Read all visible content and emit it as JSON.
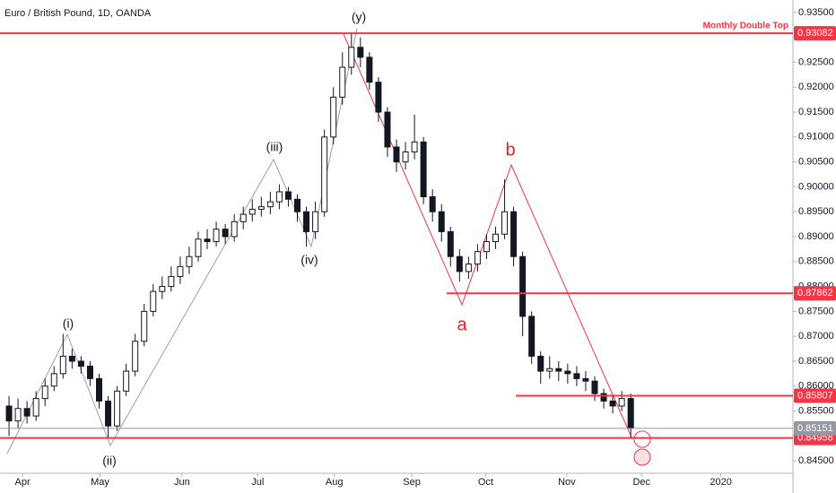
{
  "chart_data": {
    "type": "candlestick",
    "title": "Euro / British Pound, 1D, OANDA",
    "open": [
      0.856,
      0.853,
      0.8555,
      0.854,
      0.8575,
      0.86,
      0.8625,
      0.866,
      0.865,
      0.864,
      0.8615,
      0.857,
      0.852,
      0.859,
      0.863,
      0.869,
      0.875,
      0.879,
      0.88,
      0.882,
      0.884,
      0.886,
      0.8895,
      0.889,
      0.8915,
      0.89,
      0.893,
      0.8945,
      0.8955,
      0.896,
      0.897,
      0.899,
      0.8975,
      0.895,
      0.891,
      0.895,
      0.91,
      0.918,
      0.924,
      0.928,
      0.926,
      0.921,
      0.915,
      0.908,
      0.905,
      0.907,
      0.909,
      0.898,
      0.895,
      0.891,
      0.886,
      0.883,
      0.8845,
      0.887,
      0.889,
      0.8905,
      0.895,
      0.886,
      0.874,
      0.866,
      0.863,
      0.8635,
      0.863,
      0.8625,
      0.8615,
      0.861,
      0.8585,
      0.857,
      0.856,
      0.8575
    ],
    "high": [
      0.858,
      0.8575,
      0.857,
      0.859,
      0.8615,
      0.864,
      0.8705,
      0.8675,
      0.866,
      0.865,
      0.8625,
      0.858,
      0.86,
      0.8645,
      0.8705,
      0.8765,
      0.8805,
      0.882,
      0.884,
      0.886,
      0.888,
      0.891,
      0.8915,
      0.893,
      0.8925,
      0.8945,
      0.896,
      0.8975,
      0.898,
      0.899,
      0.9005,
      0.9,
      0.8985,
      0.896,
      0.897,
      0.9115,
      0.92,
      0.927,
      0.931,
      0.93,
      0.927,
      0.922,
      0.916,
      0.9095,
      0.909,
      0.9145,
      0.91,
      0.8995,
      0.8965,
      0.892,
      0.8875,
      0.886,
      0.8885,
      0.8905,
      0.892,
      0.9015,
      0.896,
      0.887,
      0.875,
      0.867,
      0.866,
      0.865,
      0.8645,
      0.864,
      0.863,
      0.862,
      0.8595,
      0.858,
      0.859,
      0.8585
    ],
    "low": [
      0.85,
      0.8515,
      0.8525,
      0.853,
      0.856,
      0.859,
      0.8615,
      0.8635,
      0.8625,
      0.86,
      0.8555,
      0.8495,
      0.851,
      0.858,
      0.862,
      0.868,
      0.874,
      0.8775,
      0.879,
      0.8805,
      0.8825,
      0.885,
      0.8875,
      0.888,
      0.8885,
      0.889,
      0.8915,
      0.893,
      0.894,
      0.8945,
      0.8955,
      0.896,
      0.893,
      0.888,
      0.8895,
      0.894,
      0.9085,
      0.9165,
      0.9225,
      0.924,
      0.9195,
      0.913,
      0.906,
      0.903,
      0.9035,
      0.9055,
      0.8965,
      0.893,
      0.889,
      0.884,
      0.881,
      0.8815,
      0.883,
      0.8855,
      0.8875,
      0.8895,
      0.884,
      0.87,
      0.8645,
      0.8605,
      0.8615,
      0.861,
      0.8605,
      0.86,
      0.859,
      0.857,
      0.8555,
      0.8545,
      0.855,
      0.8495
    ],
    "close": [
      0.853,
      0.8555,
      0.854,
      0.8575,
      0.86,
      0.8625,
      0.866,
      0.865,
      0.864,
      0.8615,
      0.857,
      0.852,
      0.859,
      0.863,
      0.869,
      0.875,
      0.879,
      0.88,
      0.882,
      0.884,
      0.886,
      0.8895,
      0.889,
      0.8915,
      0.89,
      0.893,
      0.8945,
      0.8955,
      0.896,
      0.897,
      0.899,
      0.8975,
      0.895,
      0.891,
      0.895,
      0.91,
      0.918,
      0.924,
      0.928,
      0.926,
      0.921,
      0.915,
      0.908,
      0.905,
      0.907,
      0.909,
      0.898,
      0.895,
      0.891,
      0.886,
      0.883,
      0.8845,
      0.887,
      0.889,
      0.8905,
      0.895,
      0.886,
      0.874,
      0.866,
      0.863,
      0.8635,
      0.863,
      0.8625,
      0.8615,
      0.861,
      0.8585,
      0.857,
      0.856,
      0.8575,
      0.8515
    ],
    "xlim": [
      -1,
      87
    ],
    "xticks": [
      {
        "value": 1.5,
        "label": "Apr"
      },
      {
        "value": 10.1,
        "label": "May"
      },
      {
        "value": 19.2,
        "label": "Jun"
      },
      {
        "value": 27.6,
        "label": "Jul"
      },
      {
        "value": 36.1,
        "label": "Aug"
      },
      {
        "value": 44.7,
        "label": "Sep"
      },
      {
        "value": 52.9,
        "label": "Oct"
      },
      {
        "value": 61.9,
        "label": "Nov"
      },
      {
        "value": 70.2,
        "label": "Dec"
      },
      {
        "value": 79,
        "label": "2020"
      }
    ],
    "ylim": [
      0.8425,
      0.9375
    ],
    "yticks": [
      {
        "value": 0.845,
        "label": "0.84500"
      },
      {
        "value": 0.85,
        "label": "0.85000"
      },
      {
        "value": 0.855,
        "label": "0.85500"
      },
      {
        "value": 0.86,
        "label": "0.86000"
      },
      {
        "value": 0.865,
        "label": "0.86500"
      },
      {
        "value": 0.87,
        "label": "0.87000"
      },
      {
        "value": 0.875,
        "label": "0.87500"
      },
      {
        "value": 0.88,
        "label": "0.88000"
      },
      {
        "value": 0.885,
        "label": "0.88500"
      },
      {
        "value": 0.89,
        "label": "0.89000"
      },
      {
        "value": 0.895,
        "label": "0.89500"
      },
      {
        "value": 0.9,
        "label": "0.90000"
      },
      {
        "value": 0.905,
        "label": "0.90500"
      },
      {
        "value": 0.91,
        "label": "0.91000"
      },
      {
        "value": 0.915,
        "label": "0.91500"
      },
      {
        "value": 0.92,
        "label": "0.92000"
      },
      {
        "value": 0.925,
        "label": "0.92500"
      },
      {
        "value": 0.93,
        "label": "0.93000"
      },
      {
        "value": 0.935,
        "label": "0.93500"
      }
    ],
    "levels": [
      {
        "value": 0.93082,
        "color": "#f23645"
      },
      {
        "value": 0.87862,
        "color": "#f23645"
      },
      {
        "value": 0.85807,
        "color": "#f23645"
      },
      {
        "value": 0.84958,
        "color": "#f23645"
      },
      {
        "value": 0.85151,
        "color": "#9598a1"
      }
    ],
    "level_note": "Monthly Double Top",
    "waves": [
      "(i)",
      "(ii)",
      "(iii)",
      "(iv)",
      "(y)",
      "a",
      "b"
    ]
  }
}
